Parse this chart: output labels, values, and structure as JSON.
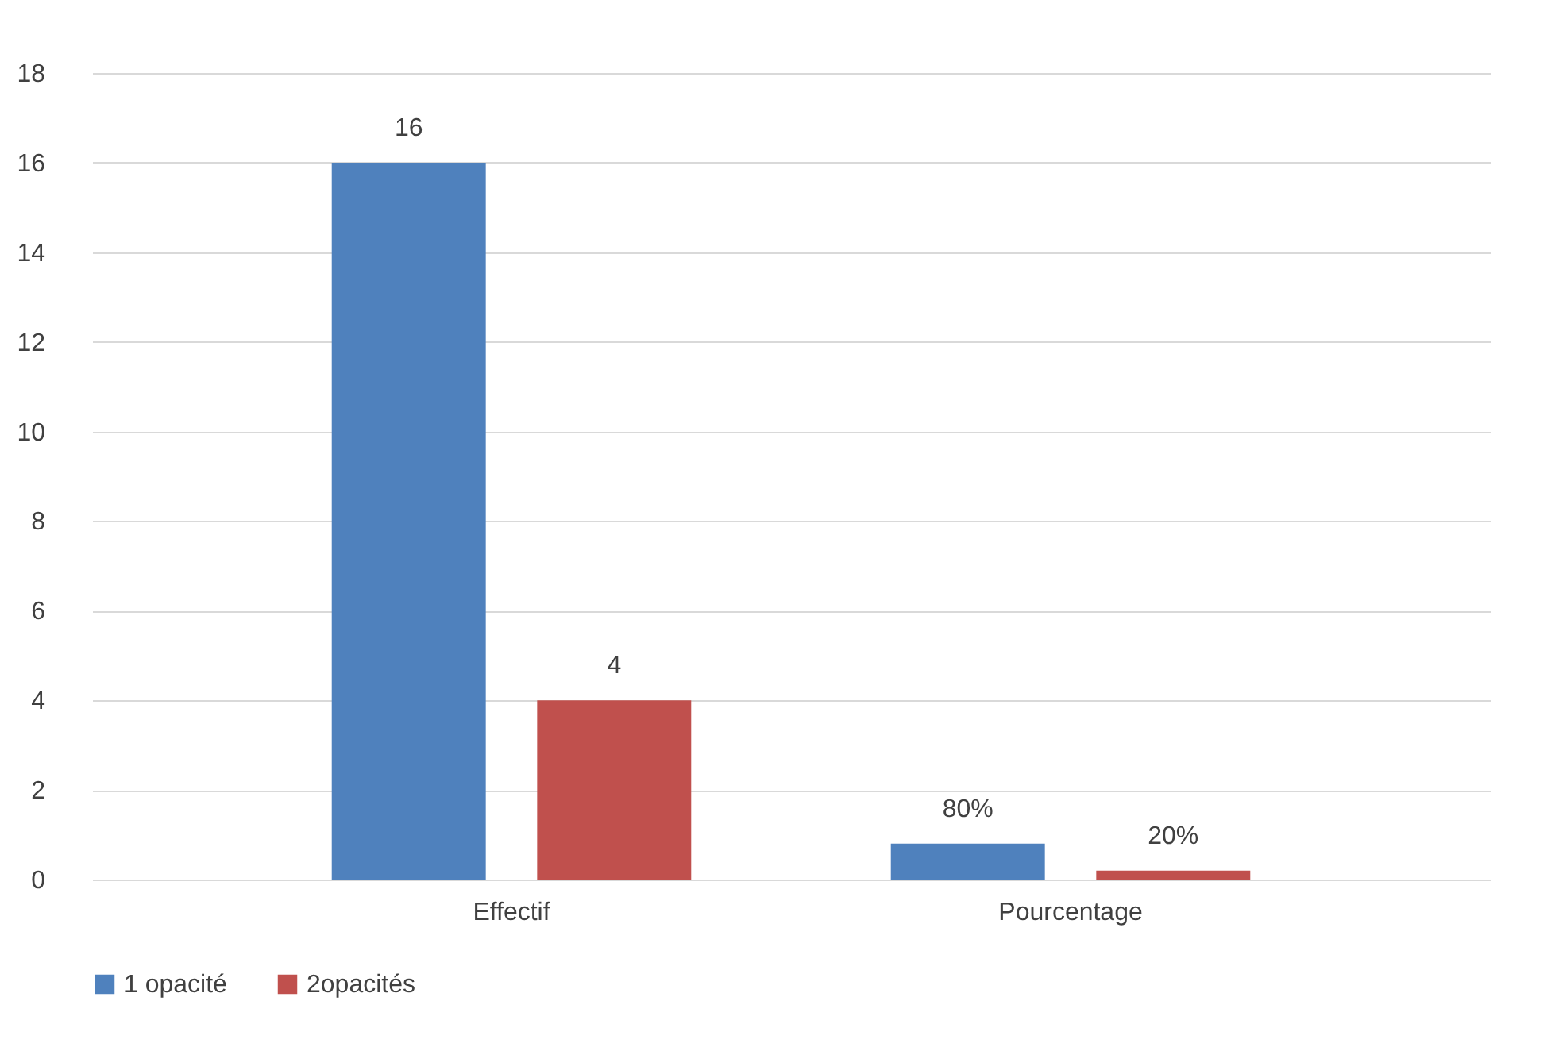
{
  "chart_data": {
    "type": "bar",
    "categories": [
      "Effectif",
      "Pourcentage"
    ],
    "series": [
      {
        "name": "1 opacité",
        "color": "#4f81bd",
        "values": [
          16,
          0.8
        ],
        "value_labels": [
          "16",
          "80%"
        ]
      },
      {
        "name": "2opacités",
        "color": "#c0504d",
        "values": [
          4,
          0.2
        ],
        "value_labels": [
          "4",
          "20%"
        ]
      }
    ],
    "ylim": [
      0,
      18
    ],
    "yticks": [
      0,
      2,
      4,
      6,
      8,
      10,
      12,
      14,
      16,
      18
    ],
    "grid": "y",
    "legend": "bottom"
  }
}
